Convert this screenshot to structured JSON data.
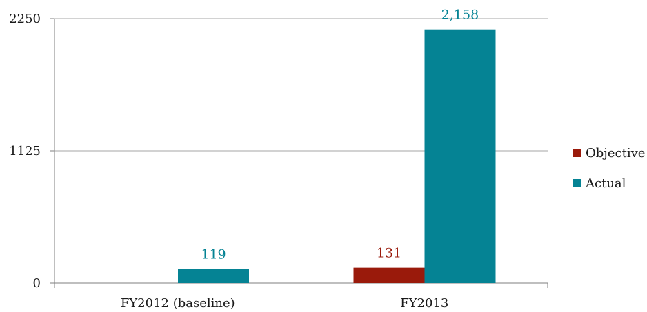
{
  "chart_data": {
    "type": "bar",
    "title": "",
    "xlabel": "",
    "ylabel": "",
    "categories": [
      "FY2012 (baseline)",
      "FY2013"
    ],
    "series": [
      {
        "name": "Objective",
        "color": "#9a1a0b",
        "values": [
          null,
          131
        ],
        "labels": [
          "",
          "131"
        ]
      },
      {
        "name": "Actual",
        "color": "#058394",
        "values": [
          119,
          2158
        ],
        "labels": [
          "119",
          "2,158"
        ]
      }
    ],
    "ylim": [
      0,
      2250
    ],
    "yticks": [
      0,
      1125,
      2250
    ],
    "ytick_labels": [
      "0",
      "1125",
      "2250"
    ],
    "grid": true,
    "legend_position": "right"
  }
}
